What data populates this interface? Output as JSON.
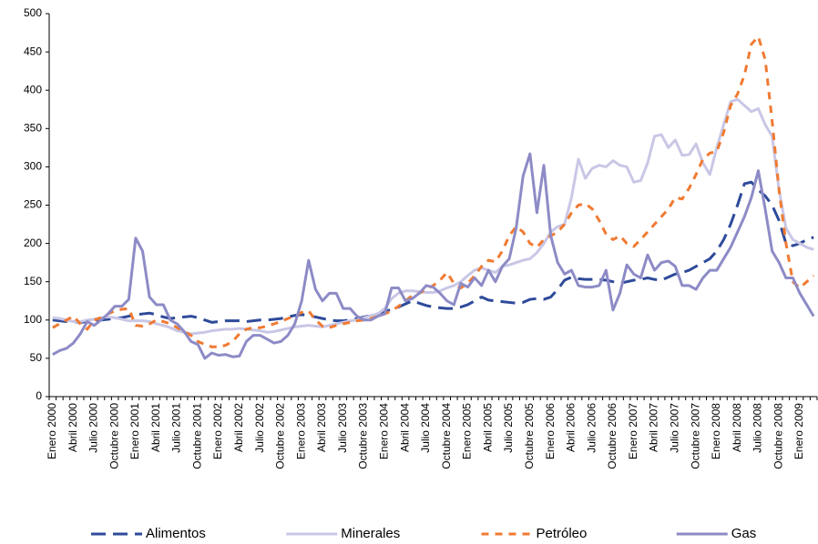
{
  "chart_data": {
    "type": "line",
    "categories": [
      "Enero 2000",
      null,
      null,
      "Abril 2000",
      null,
      null,
      "Julio 2000",
      null,
      null,
      "Octubre 2000",
      null,
      null,
      "Enero 2001",
      null,
      null,
      "Abril 2001",
      null,
      null,
      "Julio 2001",
      null,
      null,
      "Octubre 2001",
      null,
      null,
      "Enero 2002",
      null,
      null,
      "Abril 2002",
      null,
      null,
      "Julio 2002",
      null,
      null,
      "Octubre 2002",
      null,
      null,
      "Enero 2003",
      null,
      null,
      "Abril 2003",
      null,
      null,
      "Julio 2003",
      null,
      null,
      "Octubre 2003",
      null,
      null,
      "Enero 2004",
      null,
      null,
      "Abril 2004",
      null,
      null,
      "Julio 2004",
      null,
      null,
      "Octubre 2004",
      null,
      null,
      "Enero 2005",
      null,
      null,
      "Abril 2005",
      null,
      null,
      "Julio 2005",
      null,
      null,
      "Octubre 2005",
      null,
      null,
      "Enero 2006",
      null,
      null,
      "Abril 2006",
      null,
      null,
      "Julio 2006",
      null,
      null,
      "Octubre 2006",
      null,
      null,
      "Enero 2007",
      null,
      null,
      "Abril 2007",
      null,
      null,
      "Julio 2007",
      null,
      null,
      "Octubre 2007",
      null,
      null,
      "Enero 2008",
      null,
      null,
      "Abril 2008",
      null,
      null,
      "Julio 2008",
      null,
      null,
      "Octubre 2008",
      null,
      null,
      "Enero 2009",
      null,
      null
    ],
    "series": [
      {
        "name": "Alimentos",
        "color": "#2e4a9a",
        "dash": "long",
        "values": [
          100,
          99,
          98,
          98,
          97,
          98,
          99,
          100,
          101,
          102,
          103,
          105,
          107,
          108,
          109,
          107,
          104,
          102,
          103,
          104,
          105,
          103,
          100,
          97,
          98,
          99,
          99,
          99,
          98,
          99,
          100,
          100,
          101,
          102,
          104,
          106,
          107,
          106,
          104,
          102,
          100,
          99,
          99,
          100,
          102,
          104,
          106,
          108,
          111,
          114,
          117,
          121,
          125,
          122,
          119,
          117,
          116,
          115,
          115,
          117,
          120,
          125,
          130,
          126,
          125,
          124,
          123,
          122,
          123,
          127,
          128,
          127,
          130,
          140,
          152,
          156,
          154,
          153,
          153,
          153,
          152,
          150,
          148,
          150,
          152,
          153,
          155,
          153,
          152,
          156,
          160,
          162,
          165,
          170,
          175,
          180,
          190,
          205,
          225,
          250,
          278,
          280,
          270,
          262,
          250,
          230,
          200,
          197,
          200,
          205,
          208
        ]
      },
      {
        "name": "Minerales",
        "color": "#c9c7e6",
        "dash": "solid",
        "values": [
          103,
          102,
          100,
          98,
          98,
          100,
          101,
          103,
          104,
          103,
          101,
          99,
          99,
          99,
          98,
          95,
          93,
          90,
          86,
          84,
          82,
          83,
          84,
          86,
          87,
          88,
          88,
          89,
          88,
          87,
          86,
          84,
          85,
          87,
          89,
          91,
          92,
          93,
          92,
          91,
          93,
          95,
          97,
          99,
          100,
          103,
          106,
          108,
          115,
          128,
          135,
          138,
          138,
          137,
          136,
          136,
          138,
          142,
          145,
          150,
          158,
          165,
          168,
          165,
          162,
          170,
          172,
          175,
          178,
          180,
          188,
          200,
          215,
          222,
          225,
          260,
          310,
          285,
          298,
          302,
          300,
          308,
          302,
          300,
          280,
          282,
          305,
          340,
          342,
          325,
          335,
          315,
          316,
          330,
          305,
          290,
          325,
          355,
          385,
          388,
          380,
          372,
          376,
          355,
          340,
          270,
          220,
          205,
          200,
          195,
          192
        ]
      },
      {
        "name": "Petróleo",
        "color": "#f07a32",
        "dash": "short",
        "values": [
          90,
          95,
          100,
          105,
          95,
          88,
          100,
          103,
          108,
          112,
          114,
          115,
          93,
          92,
          95,
          100,
          98,
          95,
          90,
          85,
          80,
          72,
          68,
          65,
          65,
          67,
          72,
          82,
          88,
          90,
          90,
          92,
          95,
          98,
          102,
          105,
          110,
          112,
          100,
          92,
          90,
          93,
          95,
          97,
          99,
          100,
          102,
          105,
          108,
          112,
          118,
          125,
          132,
          135,
          140,
          145,
          152,
          162,
          148,
          142,
          148,
          158,
          170,
          178,
          176,
          190,
          210,
          222,
          215,
          200,
          195,
          205,
          210,
          215,
          225,
          240,
          250,
          252,
          245,
          230,
          212,
          205,
          210,
          200,
          196,
          205,
          215,
          225,
          235,
          245,
          260,
          258,
          272,
          290,
          310,
          318,
          320,
          345,
          380,
          395,
          420,
          460,
          470,
          440,
          360,
          270,
          200,
          150,
          142,
          150,
          158
        ]
      },
      {
        "name": "Gas",
        "color": "#8d8bc6",
        "dash": "solid",
        "values": [
          55,
          60,
          63,
          70,
          82,
          98,
          93,
          100,
          108,
          118,
          118,
          127,
          207,
          190,
          130,
          120,
          120,
          100,
          95,
          85,
          72,
          68,
          50,
          57,
          54,
          55,
          52,
          53,
          72,
          80,
          80,
          75,
          70,
          72,
          80,
          95,
          125,
          178,
          140,
          125,
          135,
          135,
          115,
          115,
          105,
          100,
          100,
          105,
          108,
          142,
          142,
          125,
          128,
          135,
          145,
          143,
          135,
          125,
          120,
          148,
          143,
          155,
          145,
          165,
          150,
          170,
          180,
          220,
          288,
          317,
          240,
          302,
          210,
          175,
          160,
          165,
          145,
          143,
          143,
          145,
          165,
          113,
          135,
          172,
          160,
          155,
          185,
          165,
          175,
          177,
          170,
          145,
          145,
          140,
          155,
          165,
          165,
          180,
          195,
          215,
          235,
          260,
          295,
          245,
          190,
          175,
          155,
          155,
          135,
          120,
          105
        ]
      }
    ],
    "ylim": [
      0,
      500
    ],
    "yticks": [
      0,
      50,
      100,
      150,
      200,
      250,
      300,
      350,
      400,
      450,
      500
    ],
    "grid": false,
    "legend": "bottom"
  }
}
